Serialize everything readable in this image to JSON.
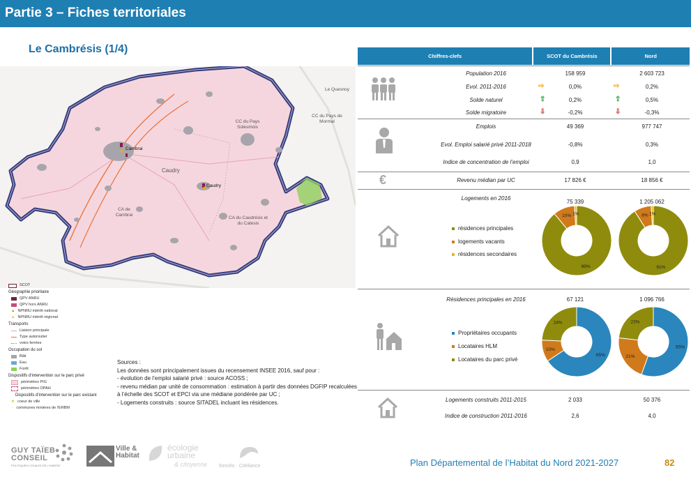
{
  "header": {
    "title": "Partie 3 – Fiches territoriales",
    "subtitle": "Le Cambrésis (1/4)"
  },
  "map": {
    "labels": [
      "Le Quesnoy",
      "CC du Pays Solesmois",
      "CC du Pays de Mormal",
      "Cambrai",
      "Caudry",
      "Caudry",
      "CA de Cambrai",
      "CA du Caudrésis et du Catesis"
    ]
  },
  "legend": {
    "scot": "SCOT",
    "geo_head": "Géographie prioritaire",
    "geo": [
      "QPV ANRU",
      "QPV hors ANRU",
      "NPNRU intérêt national",
      "NPNRU intérêt régional"
    ],
    "transport_head": "Transports",
    "transport": [
      "Liaison principale",
      "Type autoroutier",
      "voies ferrées"
    ],
    "soil_head": "Occupation du sol",
    "soil": [
      "Bâti",
      "Eau",
      "Forêt"
    ],
    "disp_head": "Dispositifs d'intervention sur le parc privé",
    "disp": [
      "périmètres PIG",
      "périmètres OPAH"
    ],
    "disp2_head": "Dispositifs d'intervention sur le parc existant",
    "disp2": [
      "coeur de ville",
      "communes minières de l'ERBM"
    ]
  },
  "sources": {
    "title": "Sources :",
    "lines": [
      "Les données sont principalement issues du recensement INSEE 2016, sauf pour :",
      "- évolution de l’emploi salarié privé : source ACOSS ;",
      "- revenu médian par unité de consommation : estimation à partir des données DGFIP recalculées à l’échelle des SCOT et EPCI via une médiane pondérée par UC ;",
      "- Logements construits : source SITADEL incluant les résidences."
    ]
  },
  "table": {
    "headers": [
      "Chiffres-clefs",
      "SCOT du Cambrésis",
      "Nord"
    ],
    "population": [
      {
        "label": "Population 2016",
        "scot": "158 959",
        "nord": "2 603 723"
      },
      {
        "label": "Evol. 2011-2016",
        "scot": "0,0%",
        "nord": "0,2%"
      },
      {
        "label": "Solde naturel",
        "scot": "0,2%",
        "nord": "0,5%"
      },
      {
        "label": "Solde migratoire",
        "scot": "-0,2%",
        "nord": "-0,3%"
      }
    ],
    "emploi": [
      {
        "label": "Emplois",
        "scot": "49 369",
        "nord": "977 747"
      },
      {
        "label": "Evol. Emploi salarié privé 2011-2018",
        "scot": "-0,8%",
        "nord": "0,3%"
      },
      {
        "label": "Indice de concentration de l’emploi",
        "scot": "0,9",
        "nord": "1,0"
      }
    ],
    "revenu": {
      "label": "Revenu médian par UC",
      "scot": "17 826 €",
      "nord": "18 856 €",
      "icon": "€"
    },
    "logements": {
      "label": "Logements en 2016",
      "scot": "75 339",
      "nord": "1 205 062",
      "legend": [
        "résidences principales",
        "logements vacants",
        "résidences secondaires"
      ]
    },
    "rp": {
      "label": "Résidences principales en 2016",
      "scot": "67 121",
      "nord": "1 096 766",
      "legend": [
        "Propriétaires occupants",
        "Locataires HLM",
        "Locataires du parc privé"
      ]
    },
    "construction": [
      {
        "label": "Logements construits 2011-2015",
        "scot": "2 033",
        "nord": "50 376"
      },
      {
        "label": "Indice de construction 2011-2016",
        "scot": "2,6",
        "nord": "4,0"
      }
    ]
  },
  "chart_data": [
    {
      "type": "pie",
      "title": "",
      "categories": [
        "résidences principales",
        "logements vacants",
        "résidences secondaires"
      ],
      "values": [
        89,
        10,
        1
      ],
      "labels": [
        "89%",
        "10%",
        "1%"
      ],
      "colors": [
        "#8f8c0d",
        "#d07a1b",
        "#e9b80c"
      ]
    },
    {
      "type": "pie",
      "title": "",
      "categories": [
        "résidences principales",
        "logements vacants",
        "résidences secondaires"
      ],
      "values": [
        91,
        8,
        1
      ],
      "labels": [
        "91%",
        "8%",
        "1%"
      ],
      "colors": [
        "#8f8c0d",
        "#d07a1b",
        "#e9b80c"
      ]
    },
    {
      "type": "pie",
      "title": "",
      "categories": [
        "Propriétaires occupants",
        "Locataires HLM",
        "Locataires du parc privé"
      ],
      "values": [
        65,
        10,
        24
      ],
      "labels": [
        "65%",
        "10%",
        "24%"
      ],
      "colors": [
        "#2a86bd",
        "#d07a1b",
        "#8f8c0d"
      ]
    },
    {
      "type": "pie",
      "title": "",
      "categories": [
        "Propriétaires occupants",
        "Locataires HLM",
        "Locataires du parc privé"
      ],
      "values": [
        55,
        21,
        23
      ],
      "labels": [
        "55%",
        "21%",
        "23%"
      ],
      "colors": [
        "#2a86bd",
        "#d07a1b",
        "#8f8c0d"
      ]
    }
  ],
  "footer": {
    "logos": [
      "GUY TAÏEB CONSEIL",
      "POLITIQUES LOCALES DE L'HABITAT",
      "Ville & Habitat",
      "écologie urbaine",
      "& citoyenne",
      "fonciéo · Citéliance"
    ],
    "plan_title": "Plan Départemental de l’Habitat du Nord 2021-2027",
    "page": "82"
  },
  "colors": {
    "accent": "#1e7fb3",
    "up": "#2c9b3a",
    "down": "#d13a2e",
    "flat": "#f0a020"
  }
}
